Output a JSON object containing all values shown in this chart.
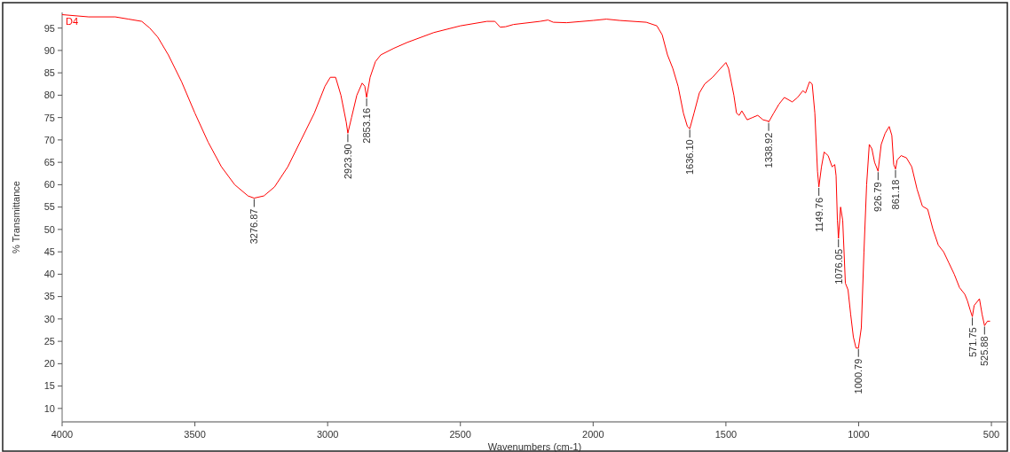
{
  "chart_data": {
    "type": "line",
    "xlabel": "Wavenumbers (cm-1)",
    "ylabel": "% Transmittance",
    "xlim": [
      4000,
      440
    ],
    "xticks": [
      4000,
      3500,
      3000,
      2500,
      2000,
      1500,
      1000,
      500
    ],
    "ylim": [
      7,
      98.5
    ],
    "yticks": [
      10,
      15,
      20,
      25,
      30,
      35,
      40,
      45,
      50,
      55,
      60,
      65,
      70,
      75,
      80,
      85,
      90,
      95
    ],
    "grid": false,
    "x": [
      4000,
      3900,
      3800,
      3750,
      3700,
      3670,
      3640,
      3600,
      3550,
      3500,
      3450,
      3400,
      3350,
      3300,
      3276.87,
      3240,
      3200,
      3150,
      3100,
      3050,
      3010,
      2990,
      2970,
      2950,
      2930,
      2923.9,
      2910,
      2890,
      2870,
      2860,
      2853.16,
      2840,
      2820,
      2800,
      2750,
      2700,
      2600,
      2500,
      2400,
      2370,
      2350,
      2330,
      2300,
      2200,
      2170,
      2150,
      2100,
      2000,
      1950,
      1900,
      1800,
      1760,
      1740,
      1720,
      1700,
      1680,
      1660,
      1645,
      1636.1,
      1620,
      1600,
      1580,
      1550,
      1520,
      1500,
      1490,
      1470,
      1460,
      1450,
      1440,
      1420,
      1400,
      1380,
      1360,
      1340,
      1338.92,
      1320,
      1300,
      1280,
      1250,
      1230,
      1210,
      1200,
      1185,
      1175,
      1165,
      1155,
      1149.76,
      1140,
      1130,
      1115,
      1100,
      1090,
      1085,
      1080,
      1076.05,
      1068,
      1060,
      1050,
      1040,
      1030,
      1020,
      1010,
      1000.79,
      990,
      980,
      970,
      960,
      950,
      940,
      926.79,
      915,
      900,
      885,
      875,
      868,
      861.18,
      855,
      840,
      820,
      800,
      780,
      760,
      740,
      720,
      700,
      680,
      660,
      640,
      620,
      600,
      590,
      580,
      571.75,
      565,
      545,
      535,
      525.88,
      515,
      505
    ],
    "series": [
      {
        "name": "D4",
        "color": "#ff0000",
        "values": [
          98,
          97.5,
          97.5,
          97,
          96.5,
          95,
          93,
          89,
          83,
          76,
          69.5,
          64,
          60,
          57.5,
          57,
          57.5,
          59.5,
          64,
          70,
          76,
          82,
          84,
          84,
          80,
          74,
          71.5,
          75,
          80,
          82.7,
          82,
          79.5,
          84,
          87.5,
          89,
          90.5,
          91.8,
          94,
          95.5,
          96.5,
          96.5,
          95.2,
          95.3,
          95.8,
          96.5,
          96.8,
          96.3,
          96.2,
          96.7,
          97,
          96.7,
          96.3,
          95.5,
          93.5,
          89,
          86,
          82,
          76,
          73,
          72.5,
          76,
          80.5,
          82.5,
          84,
          86,
          87.3,
          86,
          80,
          76,
          75.5,
          76.5,
          74.5,
          75,
          75.5,
          74.5,
          74.2,
          74,
          76,
          78,
          79.5,
          78.5,
          79.5,
          81,
          80.5,
          83,
          82.5,
          76,
          63,
          59.5,
          64,
          67.3,
          66.5,
          64,
          64.5,
          62,
          52,
          48,
          55,
          52,
          38,
          36.5,
          31,
          26,
          23.5,
          23.5,
          28,
          45,
          60,
          69,
          68,
          65,
          63,
          69,
          71.5,
          73,
          71,
          64.5,
          63.5,
          65.5,
          66.5,
          66,
          64,
          59,
          55.2,
          54.5,
          50,
          46.5,
          45,
          42.5,
          40,
          37,
          35.5,
          34,
          32,
          30.5,
          33,
          34.5,
          31,
          28.5,
          29.5,
          29.5
        ]
      }
    ],
    "annotations": [
      {
        "text": "3276.87",
        "x": 3276.87,
        "y": 57
      },
      {
        "text": "2923.90",
        "x": 2923.9,
        "y": 71.5
      },
      {
        "text": "2853.16",
        "x": 2853.16,
        "y": 79.5
      },
      {
        "text": "1636.10",
        "x": 1636.1,
        "y": 72.5
      },
      {
        "text": "1338.92",
        "x": 1338.92,
        "y": 74
      },
      {
        "text": "1149.76",
        "x": 1149.76,
        "y": 59.5
      },
      {
        "text": "1076.05",
        "x": 1076.05,
        "y": 48
      },
      {
        "text": "1000.79",
        "x": 1000.79,
        "y": 23.5
      },
      {
        "text": "926.79",
        "x": 926.79,
        "y": 63
      },
      {
        "text": "861.18",
        "x": 861.18,
        "y": 63.5
      },
      {
        "text": "571.75",
        "x": 571.75,
        "y": 30.5
      },
      {
        "text": "525.88",
        "x": 525.88,
        "y": 28.5
      }
    ]
  }
}
